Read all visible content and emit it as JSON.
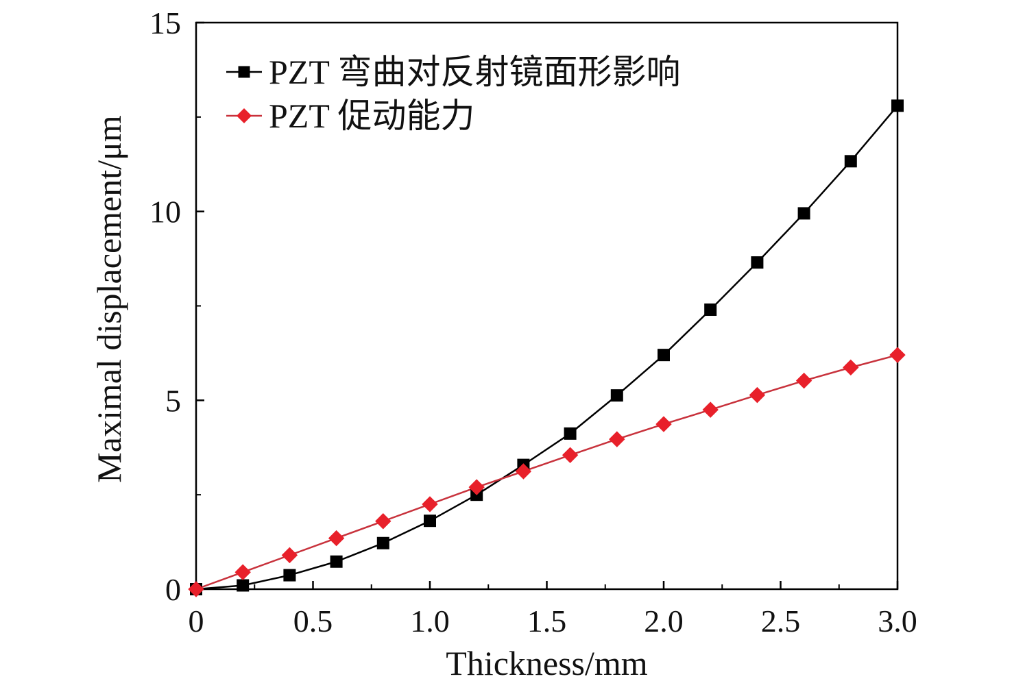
{
  "chart_data": {
    "type": "line",
    "xlabel": "Thickness/mm",
    "ylabel": "Maximal displacement/μm",
    "xlim": [
      0,
      3.0
    ],
    "ylim": [
      0,
      15
    ],
    "x_ticks": [
      0,
      0.5,
      1.0,
      1.5,
      2.0,
      2.5,
      3.0
    ],
    "x_tick_labels": [
      "0",
      "0.5",
      "1.0",
      "1.5",
      "2.0",
      "2.5",
      "3.0"
    ],
    "y_ticks": [
      0,
      5,
      10,
      15
    ],
    "y_tick_labels": [
      "0",
      "5",
      "10",
      "15"
    ],
    "grid": false,
    "legend_position": "top-left",
    "x": [
      0,
      0.2,
      0.4,
      0.6,
      0.8,
      1.0,
      1.2,
      1.4,
      1.6,
      1.8,
      2.0,
      2.2,
      2.4,
      2.6,
      2.8,
      3.0
    ],
    "series": [
      {
        "name": "PZT 弯曲对反射镜面形影响",
        "color": "#000000",
        "line_color": "#000000",
        "marker": "square",
        "values": [
          0,
          0.1,
          0.37,
          0.73,
          1.22,
          1.81,
          2.5,
          3.29,
          4.12,
          5.13,
          6.2,
          7.4,
          8.65,
          9.95,
          11.33,
          12.8
        ]
      },
      {
        "name": "PZT 促动能力",
        "color": "#e8202a",
        "line_color": "#c8323c",
        "marker": "diamond",
        "values": [
          0,
          0.45,
          0.9,
          1.35,
          1.8,
          2.25,
          2.7,
          3.12,
          3.55,
          3.97,
          4.37,
          4.75,
          5.14,
          5.52,
          5.87,
          6.2
        ]
      }
    ]
  }
}
